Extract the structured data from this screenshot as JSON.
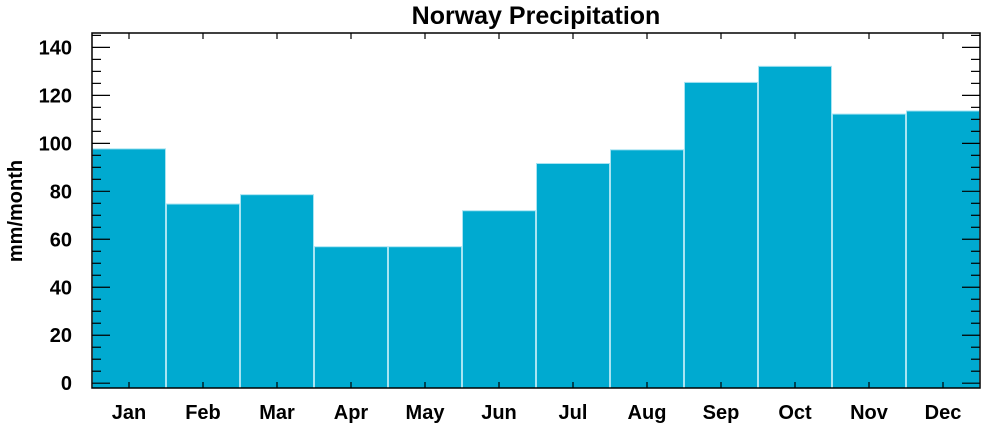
{
  "chart_data": {
    "type": "bar",
    "title": "Norway Precipitation",
    "xlabel": "",
    "ylabel": "mm/month",
    "categories": [
      "Jan",
      "Feb",
      "Mar",
      "Apr",
      "May",
      "Jun",
      "Jul",
      "Aug",
      "Sep",
      "Oct",
      "Nov",
      "Dec"
    ],
    "values": [
      97.7,
      74.7,
      78.6,
      56.9,
      56.9,
      71.9,
      91.6,
      97.3,
      125.4,
      132.1,
      112.2,
      113.5
    ],
    "ylim": [
      -2,
      146
    ],
    "yticks": [
      0,
      20,
      40,
      60,
      80,
      100,
      120,
      140
    ],
    "grid": false,
    "bar_color": "#00aad0",
    "bar_edge_color": "#a8e4f2"
  }
}
